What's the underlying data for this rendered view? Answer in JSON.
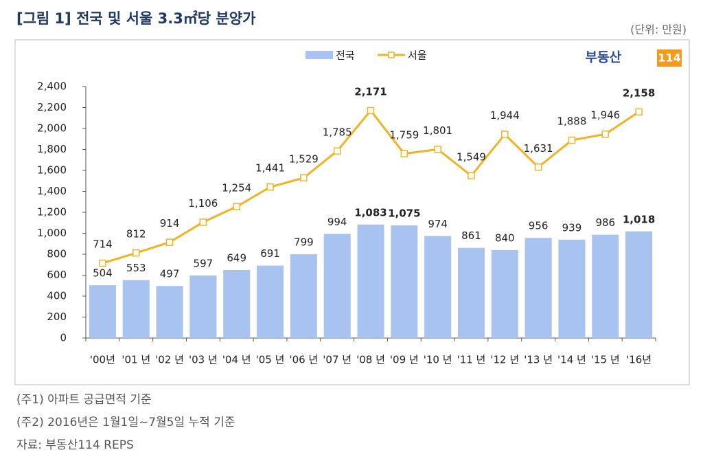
{
  "title": "[그림 1] 전국 및 서울 3.3㎡당 분양가",
  "unit": "(단위: 만원)",
  "logo": {
    "text": "부동산",
    "badge": "114"
  },
  "notes": [
    "(주1) 아파트 공급면적 기준",
    "(주2) 2016년은 1월1일~7월5일 누적 기준",
    "자료: 부동산114 REPS"
  ],
  "chart_data": {
    "type": "bar",
    "categories": [
      "'00년",
      "'01 년",
      "'02 년",
      "'03 년",
      "'04 년",
      "'05 년",
      "'06 년",
      "'07 년",
      "'08 년",
      "'09 년",
      "'10 년",
      "'11 년",
      "'12 년",
      "'13 년",
      "'14 년",
      "'15 년",
      "'16년"
    ],
    "series": [
      {
        "name": "전국",
        "type": "bar",
        "color": "#a9c3f0",
        "values": [
          504,
          553,
          497,
          597,
          649,
          691,
          799,
          994,
          1083,
          1075,
          974,
          861,
          840,
          956,
          939,
          986,
          1018
        ],
        "value_labels": [
          "504",
          "553",
          "497",
          "597",
          "649",
          "691",
          "799",
          "994",
          "1,083",
          "1,075",
          "974",
          "861",
          "840",
          "956",
          "939",
          "986",
          "1,018"
        ]
      },
      {
        "name": "서울",
        "type": "line",
        "color": "#f0b323",
        "values": [
          714,
          812,
          914,
          1106,
          1254,
          1441,
          1529,
          1785,
          2171,
          1759,
          1801,
          1549,
          1944,
          1631,
          1888,
          1946,
          2158
        ],
        "value_labels": [
          "714",
          "812",
          "914",
          "1,106",
          "1,254",
          "1,441",
          "1,529",
          "1,785",
          "2,171",
          "1,759",
          "1,801",
          "1,549",
          "1,944",
          "1,631",
          "1,888",
          "1,946",
          "2,158"
        ]
      }
    ],
    "ylim": [
      0,
      2400
    ],
    "yticks": [
      0,
      200,
      400,
      600,
      800,
      {
        "value": 1000,
        "label": "1,000"
      },
      {
        "value": 1200,
        "label": "1,200"
      },
      {
        "value": 1400,
        "label": "1,400"
      },
      {
        "value": 1600,
        "label": "1,600"
      },
      {
        "value": 1800,
        "label": "1,800"
      },
      {
        "value": 2000,
        "label": "2,000"
      },
      {
        "value": 2200,
        "label": "2,200"
      },
      {
        "value": 2400,
        "label": "2,400"
      }
    ],
    "grid": false,
    "legend": "top"
  }
}
